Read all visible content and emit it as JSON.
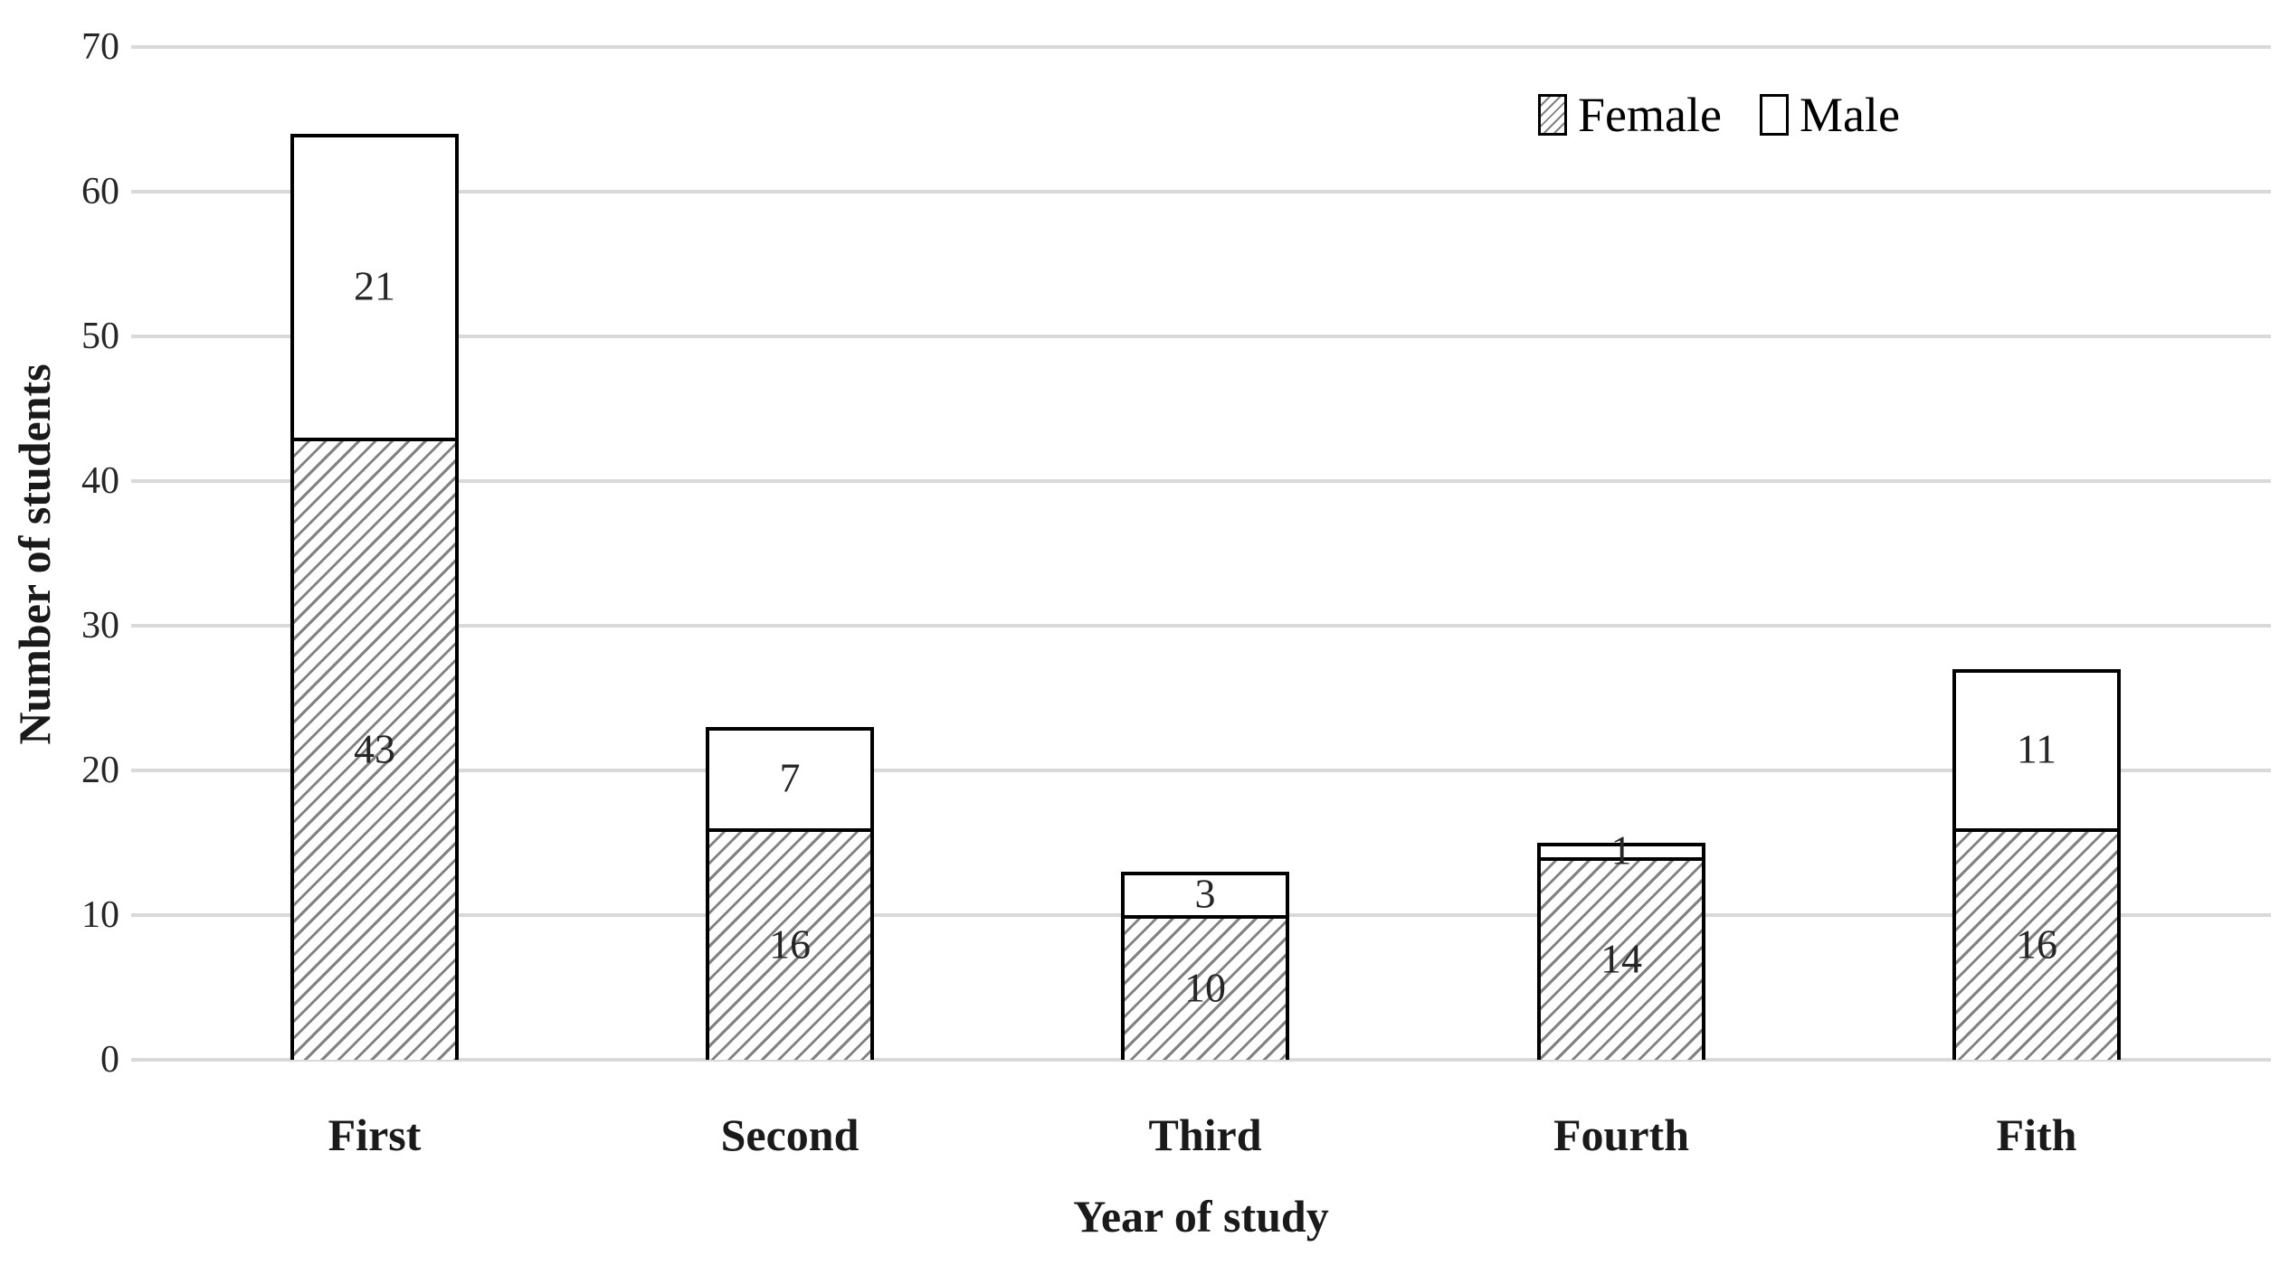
{
  "chart_data": {
    "type": "bar",
    "stacked": true,
    "title": "",
    "xlabel": "Year of study",
    "ylabel": "Number of students",
    "categories": [
      "First",
      "Second",
      "Third",
      "Fourth",
      "Fith"
    ],
    "series": [
      {
        "name": "Female",
        "fill": "diagonal-hatch",
        "values": [
          43,
          16,
          10,
          14,
          16
        ]
      },
      {
        "name": "Male",
        "fill": "white",
        "values": [
          21,
          7,
          3,
          1,
          11
        ]
      }
    ],
    "totals": [
      64,
      23,
      13,
      15,
      27
    ],
    "ylim": [
      0,
      70
    ],
    "yticks": [
      0,
      10,
      20,
      30,
      40,
      50,
      60,
      70
    ],
    "grid": "horizontal",
    "legend_position": "top-right"
  },
  "colors": {
    "gridline": "#d9d9d9",
    "bar_border": "#000000",
    "hatch_line": "#828282",
    "label_text": "#262626",
    "background": "#ffffff"
  }
}
